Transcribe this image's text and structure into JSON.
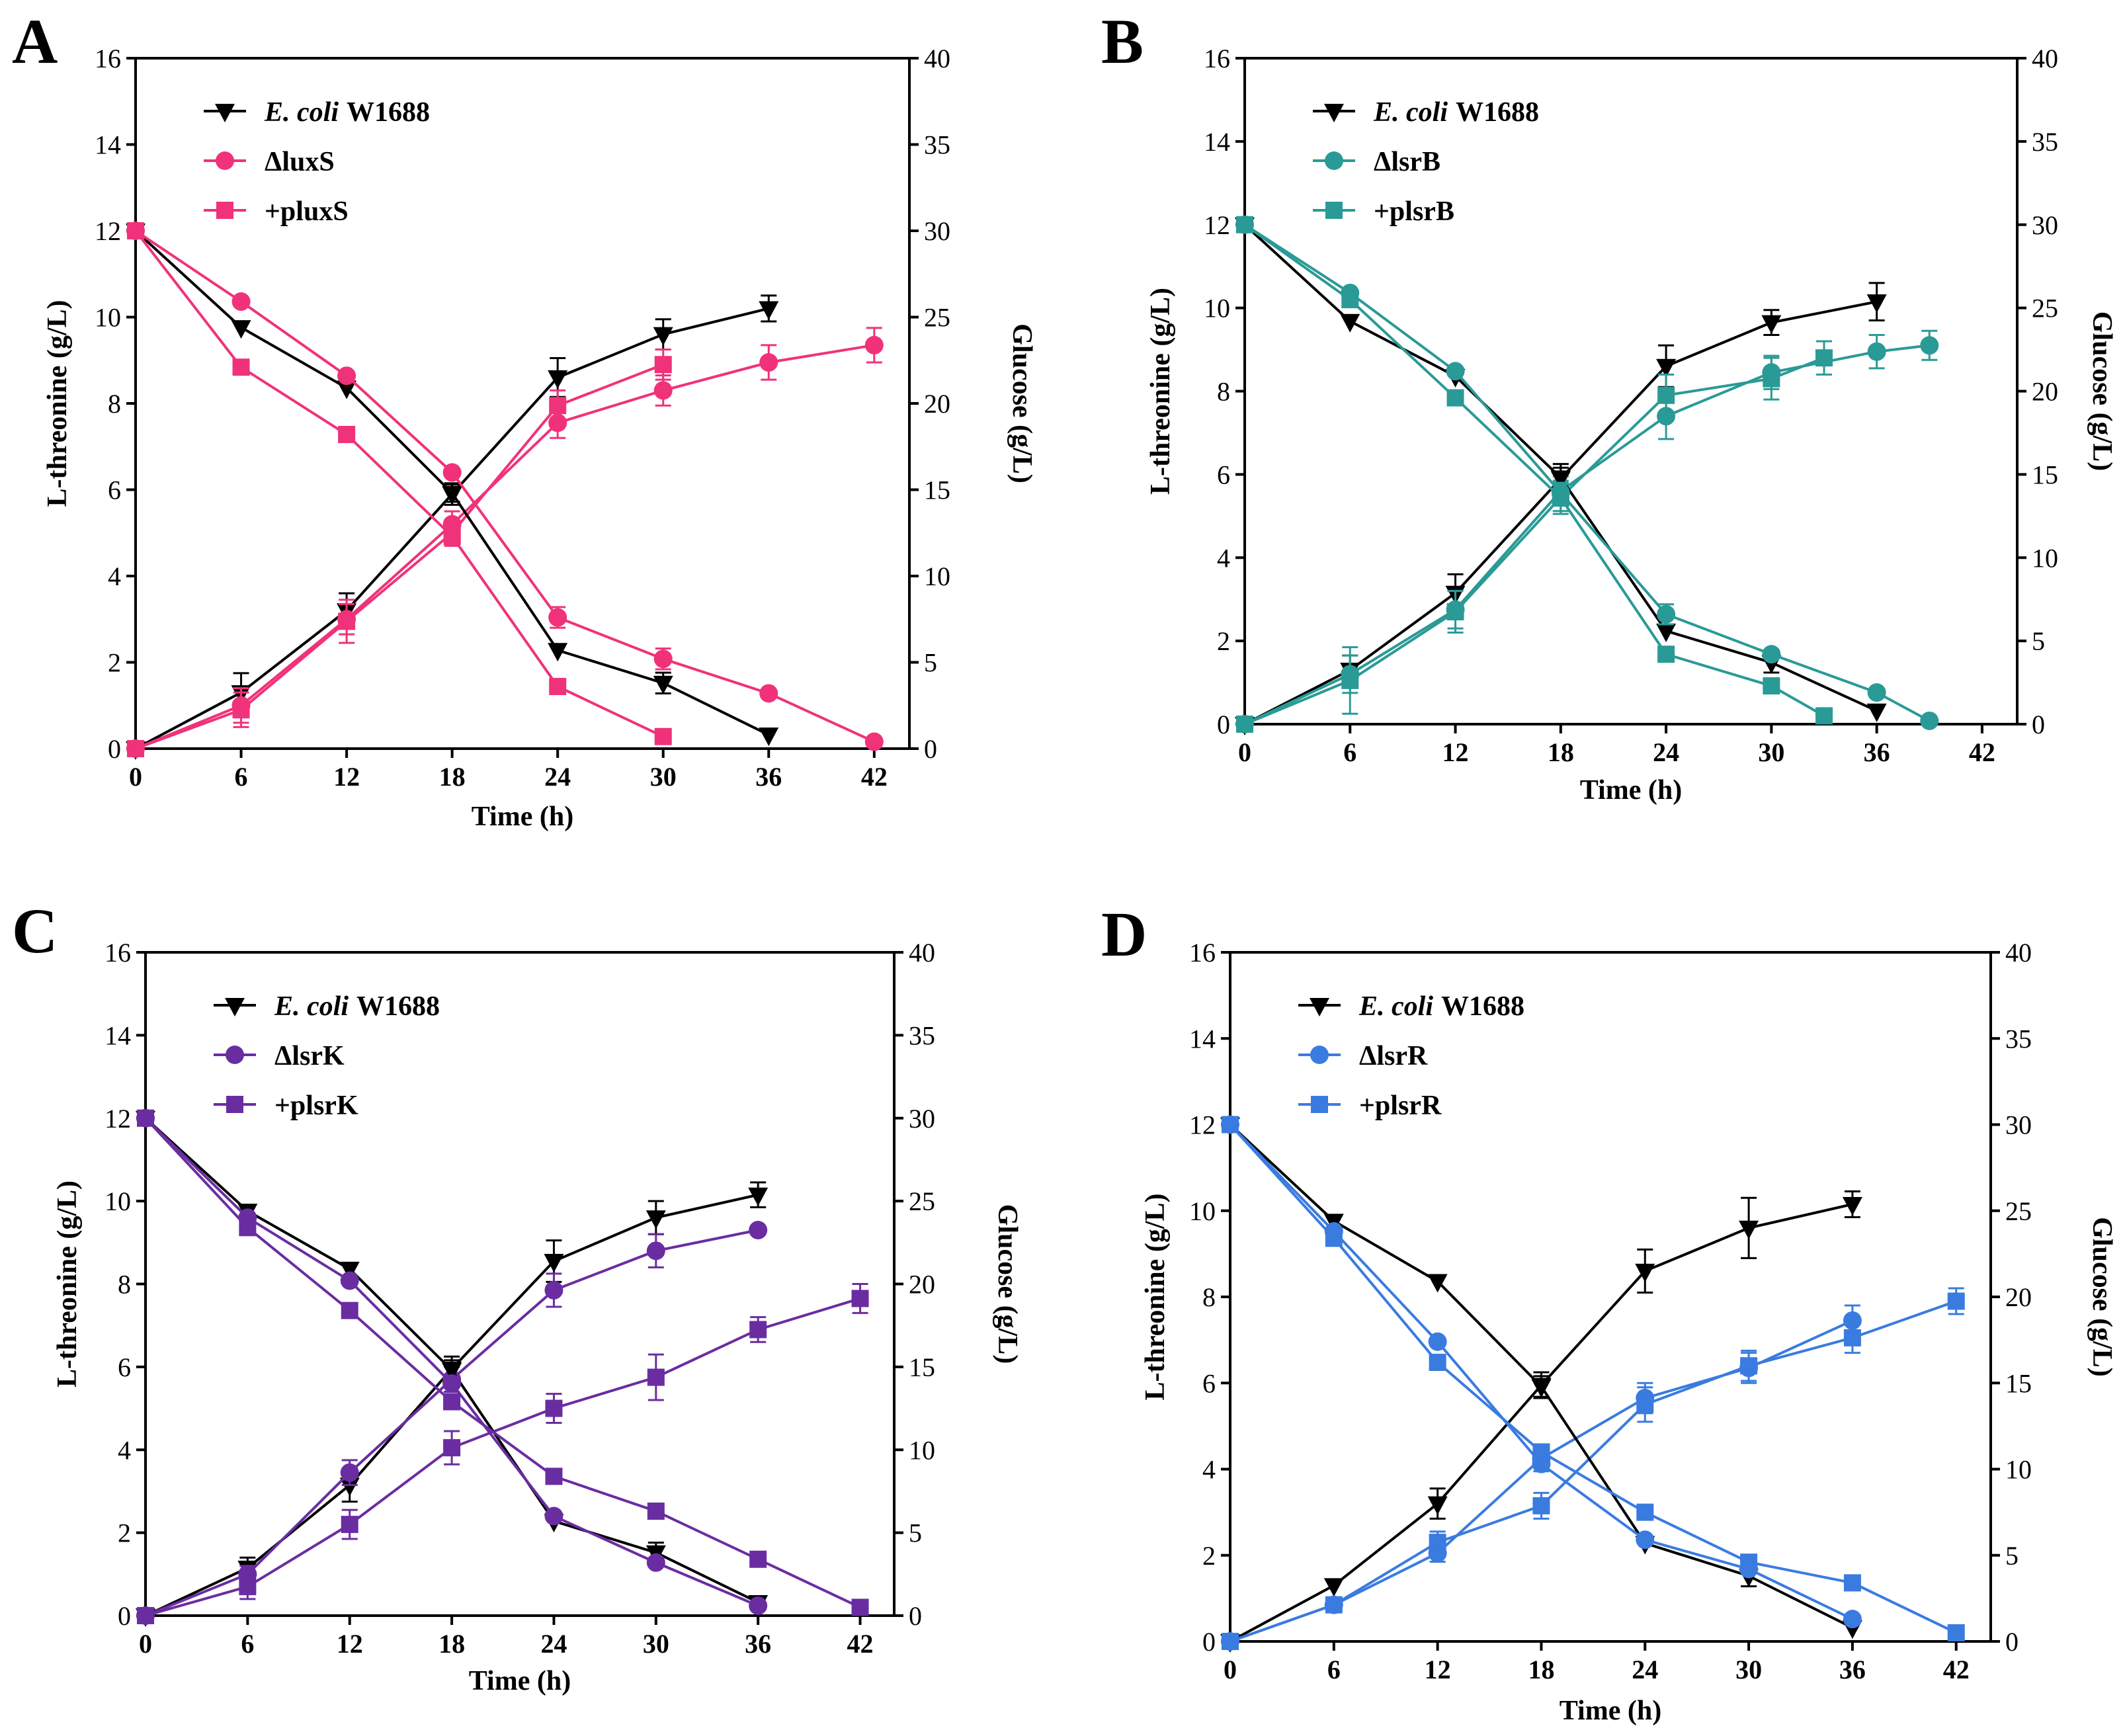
{
  "colors": {
    "black": "#000000",
    "pink": "#f0327a",
    "teal": "#2a9a96",
    "purple": "#6a2da1",
    "blue": "#3a7be0"
  },
  "chart_data": [
    {
      "type": "line",
      "panel": "A",
      "xlabel": "Time (h)",
      "ylabel_left": "L-threonine (g/L)",
      "ylabel_right": "Glucose (g/L)",
      "xlim": [
        0,
        44
      ],
      "ylim_left": [
        0,
        16
      ],
      "ylim_right": [
        0,
        40
      ],
      "xticks": [
        0,
        6,
        12,
        18,
        24,
        30,
        36,
        42
      ],
      "yticks_left": [
        0,
        2,
        4,
        6,
        8,
        10,
        12,
        14,
        16
      ],
      "yticks_right": [
        0,
        5,
        10,
        15,
        20,
        25,
        30,
        35,
        40
      ],
      "legend": [
        {
          "label_italic": "E. coli",
          "label": "W1688",
          "marker": "triangle-down",
          "color": "black"
        },
        {
          "label_italic": "",
          "label": "ΔluxS",
          "marker": "circle",
          "color": "pink"
        },
        {
          "label_italic": "",
          "label": "+pluxS",
          "marker": "square",
          "color": "pink"
        }
      ],
      "series": [
        {
          "name": "E. coli W1688 L-threonine",
          "color": "black",
          "marker": "triangle-down",
          "x": [
            0,
            6,
            12,
            18,
            24,
            30,
            36
          ],
          "y": [
            0,
            1.3,
            3.2,
            5.9,
            8.6,
            9.6,
            10.2
          ],
          "err": [
            0,
            0.45,
            0.4,
            0.25,
            0.45,
            0.35,
            0.3
          ]
        },
        {
          "name": "ΔluxS L-threonine",
          "color": "pink",
          "marker": "circle",
          "x": [
            0,
            6,
            12,
            18,
            24,
            30,
            36,
            42
          ],
          "y": [
            0,
            1.0,
            3.0,
            5.2,
            7.55,
            8.3,
            8.95,
            9.35
          ],
          "err": [
            0,
            0.4,
            0.35,
            0.3,
            0.35,
            0.35,
            0.4,
            0.4
          ]
        },
        {
          "name": "+pluxS L-threonine",
          "color": "pink",
          "marker": "square",
          "x": [
            0,
            6,
            12,
            18,
            24,
            30
          ],
          "y": [
            0,
            0.9,
            2.95,
            5.0,
            7.95,
            8.9
          ],
          "err": [
            0,
            0.4,
            0.5,
            0.3,
            0.35,
            0.35
          ]
        },
        {
          "name": "E. coli W1688 glucose",
          "color": "black",
          "marker": "triangle-down",
          "x": [
            0,
            6,
            12,
            18,
            24,
            30,
            36
          ],
          "y": [
            30,
            24.4,
            20.9,
            14.8,
            5.7,
            3.8,
            0.8
          ],
          "err": [
            0,
            0,
            0,
            0.5,
            0,
            0.6,
            0
          ]
        },
        {
          "name": "ΔluxS glucose",
          "color": "pink",
          "marker": "circle",
          "x": [
            0,
            6,
            12,
            18,
            24,
            30,
            36,
            42
          ],
          "y": [
            30,
            25.9,
            21.6,
            16.0,
            7.6,
            5.2,
            3.2,
            0.4
          ],
          "err": [
            0,
            0,
            0,
            0,
            0.6,
            0.6,
            0,
            0
          ]
        },
        {
          "name": "+pluxS glucose",
          "color": "pink",
          "marker": "square",
          "x": [
            0,
            6,
            12,
            18,
            24,
            30
          ],
          "y": [
            30,
            22.1,
            18.2,
            12.3,
            3.6,
            0.7
          ],
          "err": [
            0,
            0,
            0,
            0,
            0,
            0
          ]
        }
      ]
    },
    {
      "type": "line",
      "panel": "B",
      "xlabel": "Time (h)",
      "ylabel_left": "L-threonine (g/L)",
      "ylabel_right": "Glucose (g/L)",
      "xlim": [
        0,
        44
      ],
      "ylim_left": [
        0,
        16
      ],
      "ylim_right": [
        0,
        40
      ],
      "xticks": [
        0,
        6,
        12,
        18,
        24,
        30,
        36,
        42
      ],
      "yticks_left": [
        0,
        2,
        4,
        6,
        8,
        10,
        12,
        14,
        16
      ],
      "yticks_right": [
        0,
        5,
        10,
        15,
        20,
        25,
        30,
        35,
        40
      ],
      "legend": [
        {
          "label_italic": "E. coli",
          "label": "W1688",
          "marker": "triangle-down",
          "color": "black"
        },
        {
          "label_italic": "",
          "label": "ΔlsrB",
          "marker": "circle",
          "color": "teal"
        },
        {
          "label_italic": "",
          "label": "+plsrB",
          "marker": "square",
          "color": "teal"
        }
      ],
      "series": [
        {
          "name": "E. coli W1688 L-threonine",
          "color": "black",
          "marker": "triangle-down",
          "x": [
            0,
            6,
            12,
            18,
            24,
            30,
            36
          ],
          "y": [
            0,
            1.3,
            3.15,
            5.9,
            8.6,
            9.65,
            10.15
          ],
          "err": [
            0,
            0.35,
            0.45,
            0.35,
            0.5,
            0.3,
            0.45
          ]
        },
        {
          "name": "ΔlsrB L-threonine",
          "color": "teal",
          "marker": "circle",
          "x": [
            0,
            6,
            12,
            18,
            24,
            30,
            36,
            39
          ],
          "y": [
            0,
            1.2,
            2.75,
            5.6,
            7.4,
            8.45,
            8.95,
            9.1
          ],
          "err": [
            0,
            0.45,
            0.45,
            0.35,
            0.55,
            0.4,
            0.4,
            0.35
          ]
        },
        {
          "name": "+plsrB L-threonine",
          "color": "teal",
          "marker": "square",
          "x": [
            0,
            6,
            12,
            18,
            24,
            30,
            33
          ],
          "y": [
            0,
            1.05,
            2.7,
            5.45,
            7.9,
            8.3,
            8.8
          ],
          "err": [
            0,
            0.8,
            0.5,
            0.4,
            0.5,
            0.5,
            0.4
          ]
        },
        {
          "name": "E. coli W1688 glucose",
          "color": "black",
          "marker": "triangle-down",
          "x": [
            0,
            6,
            12,
            18,
            24,
            30,
            36
          ],
          "y": [
            30,
            24.2,
            20.9,
            14.8,
            5.6,
            3.7,
            0.8
          ],
          "err": [
            0,
            0,
            0,
            0.6,
            0,
            0.6,
            0
          ]
        },
        {
          "name": "ΔlsrB glucose",
          "color": "teal",
          "marker": "circle",
          "x": [
            0,
            6,
            12,
            18,
            24,
            30,
            36,
            39
          ],
          "y": [
            30,
            25.9,
            21.2,
            13.9,
            6.6,
            4.2,
            1.9,
            0.2
          ],
          "err": [
            0,
            0,
            0,
            0.6,
            0.6,
            0,
            0,
            0
          ]
        },
        {
          "name": "+plsrB glucose",
          "color": "teal",
          "marker": "square",
          "x": [
            0,
            6,
            12,
            18,
            24,
            30,
            33
          ],
          "y": [
            30,
            25.5,
            19.6,
            13.6,
            4.2,
            2.3,
            0.5
          ],
          "err": [
            0,
            0,
            0,
            0.8,
            0,
            0.4,
            0
          ]
        }
      ]
    },
    {
      "type": "line",
      "panel": "C",
      "xlabel": "Time (h)",
      "ylabel_left": "L-threonine (g/L)",
      "ylabel_right": "Glucose (g/L)",
      "xlim": [
        0,
        44
      ],
      "ylim_left": [
        0,
        16
      ],
      "ylim_right": [
        0,
        40
      ],
      "xticks": [
        0,
        6,
        12,
        18,
        24,
        30,
        36,
        42
      ],
      "yticks_left": [
        0,
        2,
        4,
        6,
        8,
        10,
        12,
        14,
        16
      ],
      "yticks_right": [
        0,
        5,
        10,
        15,
        20,
        25,
        30,
        35,
        40
      ],
      "legend": [
        {
          "label_italic": "E. coli",
          "label": "W1688",
          "marker": "triangle-down",
          "color": "black"
        },
        {
          "label_italic": "",
          "label": "ΔlsrK",
          "marker": "circle",
          "color": "purple"
        },
        {
          "label_italic": "",
          "label": "+plsrK",
          "marker": "square",
          "color": "purple"
        }
      ],
      "series": [
        {
          "name": "E. coli W1688 L-threonine",
          "color": "black",
          "marker": "triangle-down",
          "x": [
            0,
            6,
            12,
            18,
            24,
            30,
            36
          ],
          "y": [
            0,
            1.15,
            3.15,
            5.95,
            8.55,
            9.6,
            10.15
          ],
          "err": [
            0,
            0.25,
            0.4,
            0.3,
            0.5,
            0.4,
            0.3
          ]
        },
        {
          "name": "ΔlsrK L-threonine",
          "color": "purple",
          "marker": "circle",
          "x": [
            0,
            6,
            12,
            18,
            24,
            30,
            36
          ],
          "y": [
            0,
            1.0,
            3.45,
            5.7,
            7.85,
            8.8,
            9.3
          ],
          "err": [
            0,
            0.2,
            0.3,
            0.3,
            0.4,
            0.4,
            0
          ]
        },
        {
          "name": "+plsrK L-threonine",
          "color": "purple",
          "marker": "square",
          "x": [
            0,
            6,
            12,
            18,
            24,
            30,
            36,
            42
          ],
          "y": [
            0,
            0.7,
            2.2,
            4.05,
            5.0,
            5.75,
            6.9,
            7.65
          ],
          "err": [
            0,
            0.3,
            0.35,
            0.4,
            0.35,
            0.55,
            0.3,
            0.35
          ]
        },
        {
          "name": "E. coli W1688 glucose",
          "color": "black",
          "marker": "triangle-down",
          "x": [
            0,
            6,
            12,
            18,
            24,
            30,
            36
          ],
          "y": [
            30,
            24.4,
            20.9,
            14.8,
            5.7,
            3.8,
            0.8
          ],
          "err": [
            0,
            0,
            0,
            0.6,
            0,
            0.6,
            0
          ]
        },
        {
          "name": "ΔlsrK glucose",
          "color": "purple",
          "marker": "circle",
          "x": [
            0,
            6,
            12,
            18,
            24,
            30,
            36
          ],
          "y": [
            30,
            24.0,
            20.2,
            14.0,
            6.0,
            3.2,
            0.6
          ],
          "err": [
            0,
            0,
            0,
            0,
            0,
            0,
            0
          ]
        },
        {
          "name": "+plsrK glucose",
          "color": "purple",
          "marker": "square",
          "x": [
            0,
            6,
            12,
            18,
            24,
            30,
            36,
            42
          ],
          "y": [
            30,
            23.4,
            18.4,
            12.9,
            8.4,
            6.3,
            3.4,
            0.5
          ],
          "err": [
            0,
            0,
            0,
            0,
            0,
            0,
            0,
            0
          ]
        }
      ]
    },
    {
      "type": "line",
      "panel": "D",
      "xlabel": "Time (h)",
      "ylabel_left": "L-threonine (g/L)",
      "ylabel_right": "Glucose (g/L)",
      "xlim": [
        0,
        44
      ],
      "ylim_left": [
        0,
        16
      ],
      "ylim_right": [
        0,
        40
      ],
      "xticks": [
        0,
        6,
        12,
        18,
        24,
        30,
        36,
        42
      ],
      "yticks_left": [
        0,
        2,
        4,
        6,
        8,
        10,
        12,
        14,
        16
      ],
      "yticks_right": [
        0,
        5,
        10,
        15,
        20,
        25,
        30,
        35,
        40
      ],
      "legend": [
        {
          "label_italic": "E. coli",
          "label": "W1688",
          "marker": "triangle-down",
          "color": "black"
        },
        {
          "label_italic": "",
          "label": "ΔlsrR",
          "marker": "circle",
          "color": "blue"
        },
        {
          "label_italic": "",
          "label": "+plsrR",
          "marker": "square",
          "color": "blue"
        }
      ],
      "series": [
        {
          "name": "E. coli W1688 L-threonine",
          "color": "black",
          "marker": "triangle-down",
          "x": [
            0,
            6,
            12,
            18,
            24,
            30,
            36
          ],
          "y": [
            0,
            1.3,
            3.2,
            5.95,
            8.6,
            9.6,
            10.15
          ],
          "err": [
            0,
            0,
            0.35,
            0.3,
            0.5,
            0.7,
            0.3
          ]
        },
        {
          "name": "ΔlsrR L-threonine",
          "color": "blue",
          "marker": "circle",
          "x": [
            0,
            6,
            12,
            18,
            24,
            30,
            36
          ],
          "y": [
            0,
            0.85,
            2.05,
            4.25,
            5.65,
            6.35,
            7.45
          ],
          "err": [
            0,
            0,
            0.2,
            0.3,
            0.35,
            0.35,
            0.35
          ]
        },
        {
          "name": "+plsrR L-threonine",
          "color": "blue",
          "marker": "square",
          "x": [
            0,
            6,
            12,
            18,
            24,
            30,
            36,
            42
          ],
          "y": [
            0,
            0.85,
            2.3,
            3.15,
            5.5,
            6.4,
            7.05,
            7.9
          ],
          "err": [
            0,
            0,
            0.25,
            0.3,
            0.4,
            0.35,
            0.35,
            0.3
          ]
        },
        {
          "name": "E. coli W1688 glucose",
          "color": "black",
          "marker": "triangle-down",
          "x": [
            0,
            6,
            12,
            18,
            24,
            30,
            36
          ],
          "y": [
            30,
            24.4,
            20.9,
            14.8,
            5.7,
            3.8,
            0.8
          ],
          "err": [
            0,
            0,
            0,
            0.6,
            0,
            0.6,
            0
          ]
        },
        {
          "name": "ΔlsrR glucose",
          "color": "blue",
          "marker": "circle",
          "x": [
            0,
            6,
            12,
            18,
            24,
            30,
            36
          ],
          "y": [
            30,
            23.8,
            17.4,
            10.3,
            5.9,
            4.2,
            1.3
          ],
          "err": [
            0,
            0,
            0,
            0,
            0,
            0,
            0
          ]
        },
        {
          "name": "+plsrR glucose",
          "color": "blue",
          "marker": "square",
          "x": [
            0,
            6,
            12,
            18,
            24,
            30,
            36,
            42
          ],
          "y": [
            30,
            23.4,
            16.2,
            11.0,
            7.5,
            4.6,
            3.4,
            0.5
          ],
          "err": [
            0,
            0,
            0,
            0,
            0,
            0,
            0,
            0
          ]
        }
      ]
    }
  ]
}
